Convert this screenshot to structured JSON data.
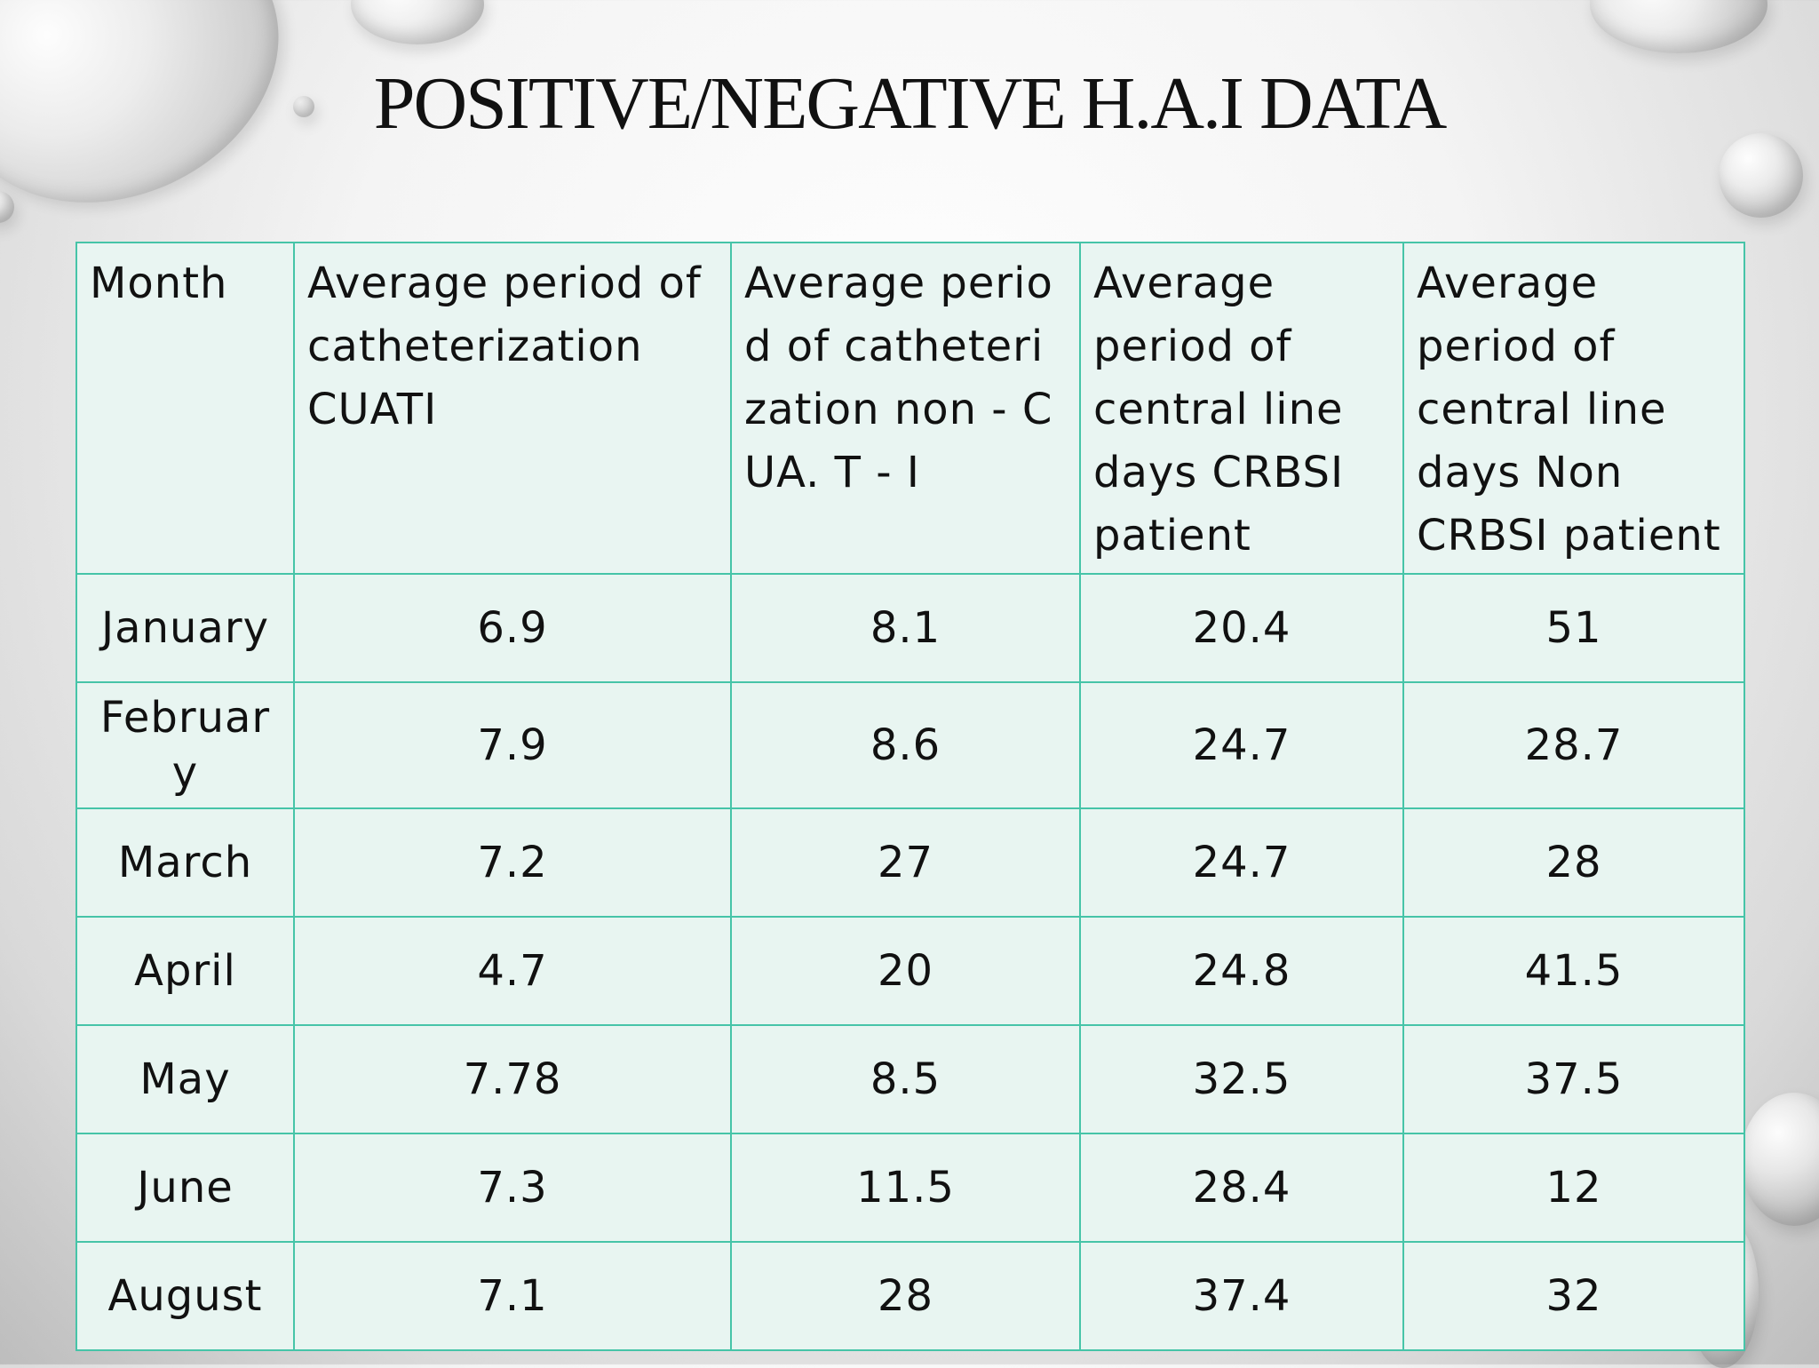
{
  "slide": {
    "title": "POSITIVE/NEGATIVE H.A.I DATA"
  },
  "table": {
    "headers": [
      "Month",
      "Average period of catheterization CUATI",
      "Average period of catheterization non - CUA. T - I",
      "Average period of central line days CRBSI patient",
      "Average period of central line days Non CRBSI patient"
    ],
    "rows": [
      [
        "January",
        "6.9",
        "8.1",
        "20.4",
        "51"
      ],
      [
        "February",
        "7.9",
        "8.6",
        "24.7",
        "28.7"
      ],
      [
        "March",
        "7.2",
        "27",
        "24.7",
        "28"
      ],
      [
        "April",
        "4.7",
        "20",
        "24.8",
        "41.5"
      ],
      [
        "May",
        "7.78",
        "8.5",
        "32.5",
        "37.5"
      ],
      [
        "June",
        "7.3",
        "11.5",
        "28.4",
        "12"
      ],
      [
        "August",
        "7.1",
        "28",
        "37.4",
        "32"
      ]
    ]
  },
  "colors": {
    "border": "#46c4a8",
    "cell_background": "#e8f5f1",
    "text": "#111111"
  }
}
